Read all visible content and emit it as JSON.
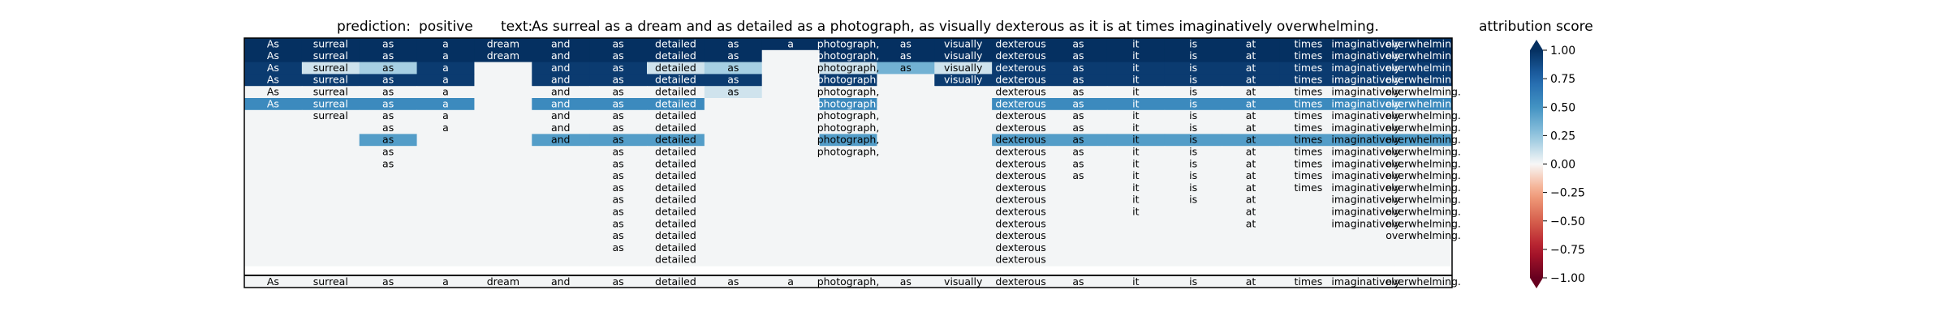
{
  "header": {
    "prediction_label": "prediction:",
    "prediction_value": "positive",
    "text_label": "text:",
    "text_value": "As surreal as a dream and as detailed as a photograph, as visually dexterous as it is at times imaginatively overwhelming.",
    "colorbar_title": "attribution score"
  },
  "chart_data": {
    "type": "heatmap",
    "title": "prediction: positive text: As surreal as a dream and as detailed as a photograph, as visually dexterous as it is at times imaginatively overwhelming.",
    "tokens": [
      "As",
      "surreal",
      "as",
      "a",
      "dream",
      "and",
      "as",
      "detailed",
      "as",
      "a",
      "photograph,",
      "as",
      "visually",
      "dexterous",
      "as",
      "it",
      "is",
      "at",
      "times",
      "imaginatively",
      "overwhelming."
    ],
    "rows": [
      {
        "shown": [
          0,
          1,
          2,
          3,
          4,
          5,
          6,
          7,
          8,
          9,
          10,
          11,
          12,
          13,
          14,
          15,
          16,
          17,
          18,
          19,
          20
        ],
        "scores": [
          1,
          1,
          1,
          1,
          1,
          1,
          1,
          1,
          1,
          1,
          1,
          1,
          1,
          1,
          1,
          1,
          1,
          1,
          1,
          1,
          1
        ]
      },
      {
        "shown": [
          0,
          1,
          2,
          3,
          4,
          5,
          6,
          7,
          8,
          10,
          11,
          12,
          13,
          14,
          15,
          16,
          17,
          18,
          19,
          20
        ],
        "scores": [
          1,
          1,
          1,
          1,
          1,
          1,
          1,
          1,
          1,
          0.05,
          1,
          1,
          1,
          1,
          1,
          1,
          1,
          1,
          1,
          1,
          1
        ]
      },
      {
        "shown": [
          0,
          1,
          2,
          3,
          5,
          6,
          7,
          8,
          10,
          11,
          12,
          13,
          14,
          15,
          16,
          17,
          18,
          19,
          20
        ],
        "scores": [
          0.95,
          0.1,
          0.2,
          0.95,
          0.05,
          0.95,
          0.95,
          0.1,
          0.2,
          0.05,
          0.1,
          0.35,
          0.1,
          0.95,
          0.95,
          0.95,
          0.95,
          0.95,
          0.95,
          0.95,
          0.95
        ]
      },
      {
        "shown": [
          0,
          1,
          2,
          3,
          5,
          6,
          7,
          8,
          10,
          12,
          13,
          14,
          15,
          16,
          17,
          18,
          19,
          20
        ],
        "scores": [
          0.95,
          0.95,
          0.95,
          0.95,
          0.05,
          0.95,
          0.95,
          0.95,
          0.95,
          0.05,
          0.95,
          0.05,
          0.95,
          0.95,
          0.95,
          0.95,
          0.95,
          0.95,
          0.95,
          0.95,
          0.95
        ]
      },
      {
        "shown": [
          0,
          1,
          2,
          3,
          5,
          6,
          7,
          8,
          10,
          13,
          14,
          15,
          16,
          17,
          18,
          19,
          20
        ],
        "scores": [
          0.02,
          0.02,
          0.02,
          0.02,
          0.05,
          0.02,
          0.02,
          0.02,
          0.1,
          0.05,
          0.02,
          0.05,
          0.05,
          0.02,
          0.02,
          0.02,
          0.02,
          0.02,
          0.02,
          0.02,
          0.02
        ]
      },
      {
        "shown": [
          0,
          1,
          2,
          3,
          5,
          6,
          7,
          10,
          13,
          14,
          15,
          16,
          17,
          18,
          19,
          20
        ],
        "scores": [
          0.55,
          0.55,
          0.55,
          0.55,
          0.05,
          0.55,
          0.55,
          0.55,
          0.05,
          0.05,
          0.55,
          0.05,
          0.05,
          0.55,
          0.55,
          0.55,
          0.55,
          0.55,
          0.55,
          0.55,
          0.55
        ]
      },
      {
        "shown": [
          1,
          2,
          3,
          5,
          6,
          7,
          10,
          13,
          14,
          15,
          16,
          17,
          18,
          19,
          20
        ],
        "scores": [
          0.05,
          0.02,
          0.02,
          0.02,
          0.05,
          0.02,
          0.02,
          0.02,
          0.05,
          0.05,
          0.02,
          0.05,
          0.05,
          0.02,
          0.02,
          0.02,
          0.02,
          0.02,
          0.02,
          0.02,
          0.02
        ]
      },
      {
        "shown": [
          2,
          3,
          5,
          6,
          7,
          10,
          13,
          14,
          15,
          16,
          17,
          18,
          19,
          20
        ],
        "scores": [
          0.05,
          0.05,
          0.02,
          0.02,
          0.05,
          0.02,
          0.02,
          0.02,
          0.05,
          0.05,
          0.02,
          0.05,
          0.05,
          0.02,
          0.02,
          0.02,
          0.02,
          0.02,
          0.02,
          0.02,
          0.02
        ]
      },
      {
        "shown": [
          2,
          5,
          6,
          7,
          10,
          13,
          14,
          15,
          16,
          17,
          18,
          19,
          20
        ],
        "scores": [
          0.05,
          0.05,
          0.45,
          0.05,
          0.05,
          0.45,
          0.45,
          0.45,
          0.05,
          0.05,
          0.45,
          0.05,
          0.05,
          0.45,
          0.45,
          0.45,
          0.45,
          0.45,
          0.45,
          0.45,
          0.45
        ]
      },
      {
        "shown": [
          2,
          6,
          7,
          10,
          13,
          14,
          15,
          16,
          17,
          18,
          19,
          20
        ],
        "scores": [
          0.05,
          0.05,
          0.02,
          0.05,
          0.05,
          0.05,
          0.02,
          0.02,
          0.05,
          0.05,
          0.02,
          0.05,
          0.05,
          0.02,
          0.02,
          0.02,
          0.02,
          0.02,
          0.02,
          0.02,
          0.02
        ]
      },
      {
        "shown": [
          2,
          6,
          7,
          13,
          14,
          15,
          16,
          17,
          18,
          19,
          20
        ],
        "scores": [
          0.05,
          0.05,
          0.02,
          0.05,
          0.05,
          0.05,
          0.02,
          0.02,
          0.05,
          0.05,
          0.05,
          0.05,
          0.05,
          0.02,
          0.02,
          0.02,
          0.02,
          0.02,
          0.02,
          0.02,
          0.02
        ]
      },
      {
        "shown": [
          6,
          7,
          13,
          14,
          15,
          16,
          17,
          18,
          19,
          20
        ],
        "scores": [
          0.05,
          0.05,
          0.05,
          0.05,
          0.05,
          0.05,
          0.02,
          0.02,
          0.05,
          0.05,
          0.05,
          0.05,
          0.05,
          0.02,
          0.02,
          0.02,
          0.02,
          0.02,
          0.02,
          0.02,
          0.02
        ]
      },
      {
        "shown": [
          6,
          7,
          13,
          15,
          16,
          17,
          18,
          19,
          20
        ],
        "scores": [
          0.05,
          0.05,
          0.05,
          0.05,
          0.05,
          0.05,
          0.02,
          0.02,
          0.05,
          0.05,
          0.05,
          0.05,
          0.05,
          0.02,
          0.05,
          0.04,
          0.04,
          0.04,
          0.04,
          0.02,
          0.02
        ]
      },
      {
        "shown": [
          6,
          7,
          13,
          15,
          16,
          17,
          19,
          20
        ],
        "scores": [
          0.05,
          0.05,
          0.05,
          0.05,
          0.05,
          0.05,
          0.02,
          0.02,
          0.05,
          0.05,
          0.05,
          0.05,
          0.05,
          0.02,
          0.05,
          0.02,
          0.02,
          0.02,
          0.05,
          0.02,
          0.02
        ]
      },
      {
        "shown": [
          6,
          7,
          13,
          15,
          17,
          19,
          20
        ],
        "scores": [
          0.05,
          0.05,
          0.05,
          0.05,
          0.05,
          0.05,
          0.02,
          0.02,
          0.05,
          0.05,
          0.05,
          0.05,
          0.05,
          0.02,
          0.05,
          0.02,
          0.05,
          0.02,
          0.05,
          0.02,
          0.02
        ]
      },
      {
        "shown": [
          6,
          7,
          13,
          17,
          19,
          20
        ],
        "scores": [
          0.05,
          0.05,
          0.05,
          0.05,
          0.05,
          0.05,
          0.02,
          0.02,
          0.05,
          0.05,
          0.05,
          0.05,
          0.05,
          0.02,
          0.05,
          0.05,
          0.05,
          0.02,
          0.05,
          0.02,
          0.02
        ]
      },
      {
        "shown": [
          6,
          7,
          13,
          20
        ],
        "scores": [
          0.05,
          0.05,
          0.05,
          0.05,
          0.05,
          0.05,
          0.02,
          0.02,
          0.05,
          0.05,
          0.05,
          0.05,
          0.05,
          0.02,
          0.05,
          0.05,
          0.05,
          0.05,
          0.05,
          0.05,
          0.02
        ]
      },
      {
        "shown": [
          6,
          7,
          13
        ],
        "scores": [
          0.05,
          0.05,
          0.05,
          0.05,
          0.05,
          0.05,
          0.02,
          0.02,
          0.05,
          0.05,
          0.05,
          0.05,
          0.05,
          0.02,
          0.05,
          0.05,
          0.05,
          0.05,
          0.05,
          0.05,
          0.05
        ]
      },
      {
        "shown": [
          7,
          13
        ],
        "scores": [
          0.05,
          0.05,
          0.05,
          0.05,
          0.05,
          0.05,
          0.05,
          0.02,
          0.05,
          0.05,
          0.05,
          0.05,
          0.05,
          0.02,
          0.05,
          0.05,
          0.05,
          0.05,
          0.05,
          0.05,
          0.05
        ]
      }
    ],
    "colorbar": {
      "min": -1.0,
      "max": 1.0,
      "ticks": [
        "1.00",
        "0.75",
        "0.50",
        "0.25",
        "0.00",
        "−0.25",
        "−0.50",
        "−0.75",
        "−1.00"
      ],
      "tick_values": [
        1.0,
        0.75,
        0.5,
        0.25,
        0.0,
        -0.25,
        -0.5,
        -0.75,
        -1.0
      ],
      "colormap": "RdBu",
      "extend": "both"
    }
  }
}
